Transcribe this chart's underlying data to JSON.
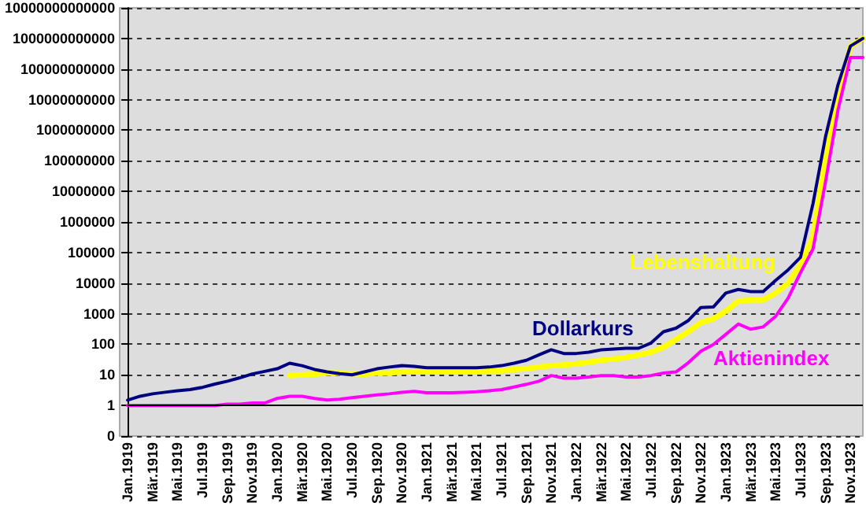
{
  "chart_data": {
    "type": "line",
    "log": true,
    "grid": "y",
    "marker": "none",
    "legend": false,
    "categories": [
      "Jan.1919",
      null,
      "Mär.1919",
      null,
      "Mai.1919",
      null,
      "Jul.1919",
      null,
      "Sep.1919",
      null,
      "Nov.1919",
      null,
      "Jan.1920",
      null,
      "Mär.1920",
      null,
      "Mai.1920",
      null,
      "Jul.1920",
      null,
      "Sep.1920",
      null,
      "Nov.1920",
      null,
      "Jan.1921",
      null,
      "Mär.1921",
      null,
      "Mai.1921",
      null,
      "Jul.1921",
      null,
      "Sep.1921",
      null,
      "Nov.1921",
      null,
      "Jan.1922",
      null,
      "Mär.1922",
      null,
      "Mai.1922",
      null,
      "Jul.1922",
      null,
      "Sep.1922",
      null,
      "Nov.1922",
      null,
      "Jan.1923",
      null,
      "Mär.1923",
      null,
      "Mai.1923",
      null,
      "Jul.1923",
      null,
      "Sep.1923",
      null,
      "Nov.1923",
      null
    ],
    "ylim": [
      0.1,
      10000000000000
    ],
    "ref_lines": [
      {
        "axis": "y",
        "value": 1,
        "color": "#000000",
        "line_style": "solid"
      }
    ],
    "yticks": [
      {
        "value": 0.1,
        "label": "0"
      },
      1,
      10,
      100,
      1000,
      10000,
      100000,
      1000000,
      10000000,
      100000000,
      1000000000,
      10000000000,
      100000000000,
      1000000000000,
      10000000000000
    ],
    "series": [
      {
        "name": "Lebenshaltung",
        "color": "#ffff00",
        "values": [
          null,
          null,
          null,
          null,
          null,
          null,
          null,
          null,
          null,
          null,
          null,
          null,
          null,
          9.5,
          10,
          10.5,
          11.5,
          11.5,
          11,
          10.5,
          11.5,
          11.5,
          12.5,
          12.5,
          13,
          13,
          13,
          13,
          13,
          13.5,
          13.5,
          15,
          16,
          18,
          20,
          21,
          23,
          26,
          30,
          33,
          37,
          45,
          55,
          80,
          144,
          257,
          510,
          680,
          1200,
          2600,
          2800,
          2800,
          4700,
          10000,
          40000,
          330000,
          130000000,
          10000000000,
          560000000000,
          1000000000000
        ]
      },
      {
        "name": "Aktienindex",
        "color": "#ff00ff",
        "values": [
          1,
          1,
          1,
          1,
          1,
          1,
          1,
          1,
          1.1,
          1.1,
          1.2,
          1.2,
          1.7,
          2,
          2,
          1.7,
          1.5,
          1.6,
          1.8,
          2,
          2.2,
          2.4,
          2.7,
          2.9,
          2.6,
          2.6,
          2.6,
          2.7,
          2.8,
          3,
          3.3,
          4,
          4.9,
          6.2,
          9.5,
          7.8,
          7.8,
          8.5,
          9.5,
          9.5,
          8.5,
          8.5,
          9.5,
          11.5,
          12.5,
          25,
          59,
          98,
          210,
          460,
          310,
          370,
          820,
          3200,
          22000,
          130000,
          20000000,
          4500000000,
          240000000000,
          240000000000
        ]
      },
      {
        "name": "Dollarkurs",
        "color": "#000080",
        "values": [
          1.5,
          2,
          2.4,
          2.7,
          3,
          3.3,
          3.9,
          5,
          6.2,
          8,
          10.7,
          13,
          15.8,
          24,
          20,
          15,
          12.5,
          11,
          10,
          12.5,
          15.8,
          18,
          20,
          19,
          17,
          17,
          17,
          17,
          17,
          18,
          20,
          24,
          30,
          45,
          66,
          50,
          50,
          55,
          66,
          70,
          74,
          74,
          110,
          257,
          335,
          600,
          1600,
          1650,
          4700,
          6200,
          5300,
          5300,
          12300,
          27000,
          70000,
          4000000,
          600000000,
          30000000000,
          560000000000,
          1000000000000
        ]
      }
    ]
  }
}
